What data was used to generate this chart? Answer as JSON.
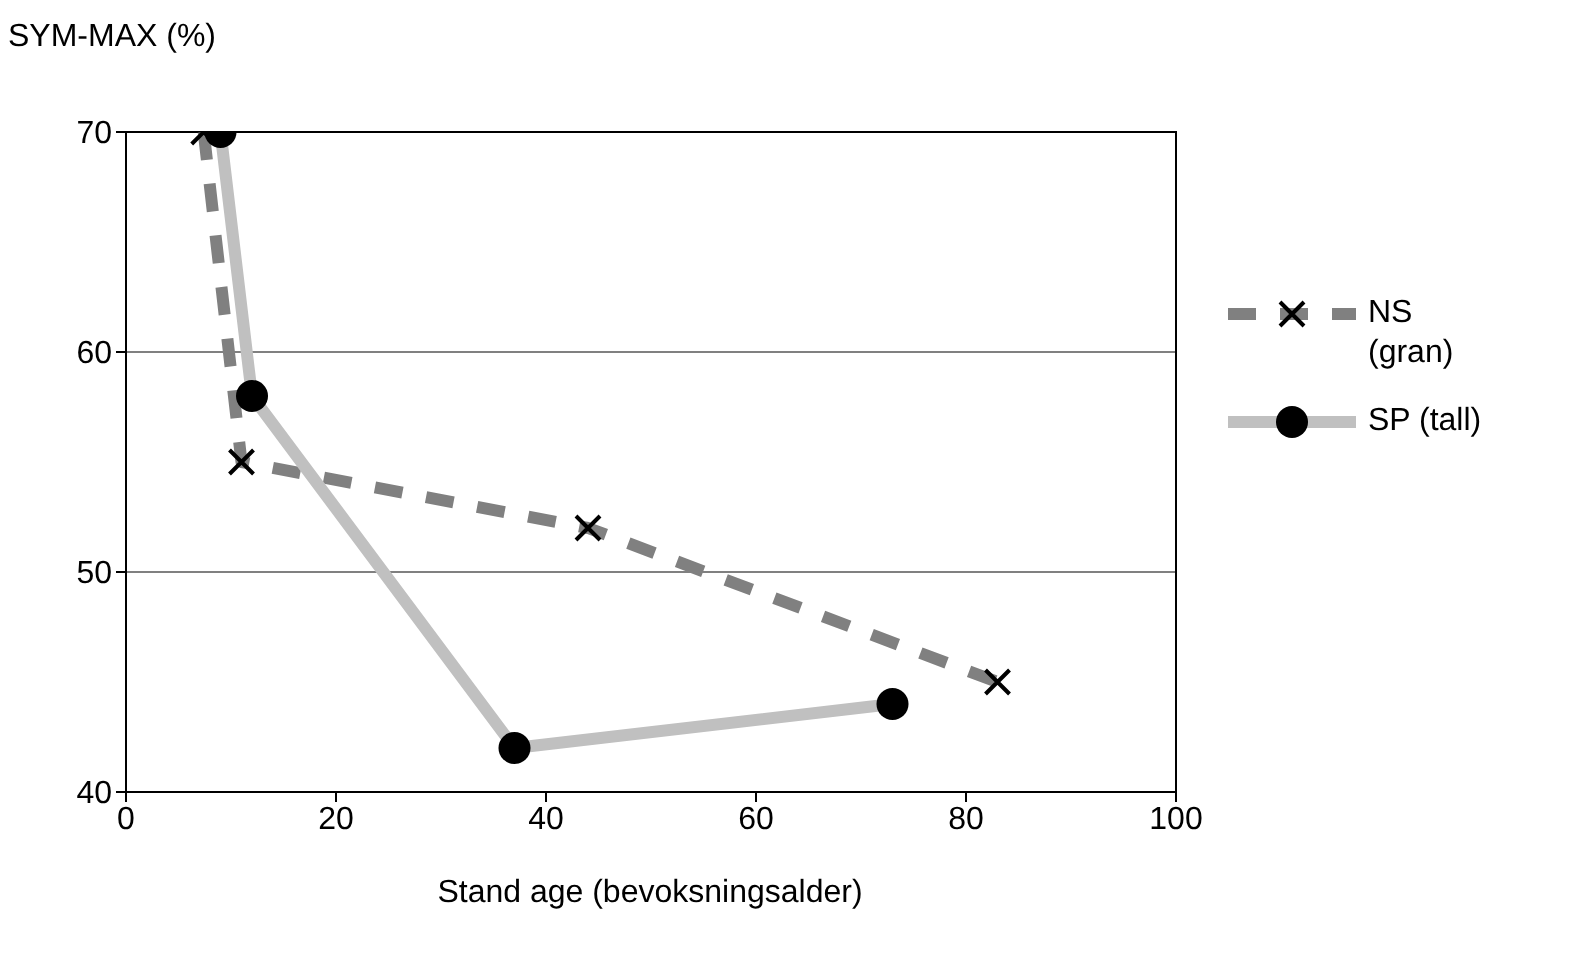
{
  "chart_data": {
    "type": "line",
    "xlabel": "Stand age (bevoksningsalder)",
    "ylabel": "SYM-MAX (%)",
    "xlim": [
      0,
      100
    ],
    "xticks": [
      0,
      20,
      40,
      60,
      80,
      100
    ],
    "ylim": [
      40,
      70
    ],
    "yticks": [
      40,
      50,
      60,
      70
    ],
    "grid": "y",
    "legend": "right",
    "series": [
      {
        "name": "NS (gran)",
        "x": [
          7.4,
          11,
          44,
          83
        ],
        "values": [
          70,
          55,
          52,
          45
        ],
        "color": "#808080",
        "line_style": "dashed",
        "marker": "cross"
      },
      {
        "name": "SP (tall)",
        "x": [
          9,
          12,
          37,
          73
        ],
        "values": [
          70,
          58,
          42,
          44
        ],
        "color": "#c0c0c0",
        "line_style": "solid",
        "marker": "circle"
      }
    ]
  }
}
